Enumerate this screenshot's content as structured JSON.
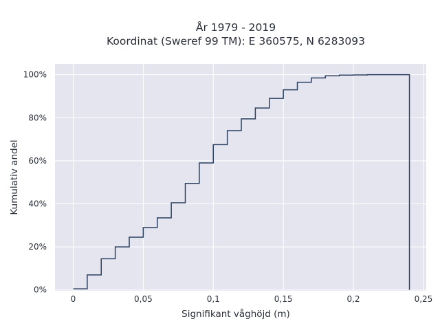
{
  "chart_data": {
    "type": "line",
    "step": "hv",
    "title_lines": [
      "År 1979 - 2019",
      "Koordinat (Sweref 99 TM): E 360575, N 6283093"
    ],
    "xlabel": "Signifikant våghöjd (m)",
    "ylabel": "Kumulativ andel",
    "xlim": [
      -0.013,
      0.252
    ],
    "ylim": [
      -0.004,
      1.05
    ],
    "x_ticks": [
      0,
      0.05,
      0.1,
      0.15,
      0.2,
      0.25
    ],
    "x_tick_labels": [
      "0",
      "0,05",
      "0,1",
      "0,15",
      "0,2",
      "0,25"
    ],
    "y_ticks": [
      0,
      0.2,
      0.4,
      0.6,
      0.8,
      1.0
    ],
    "y_tick_labels": [
      "0%",
      "20%",
      "40%",
      "60%",
      "80%",
      "100%"
    ],
    "grid": true,
    "x": [
      0,
      0.01,
      0.02,
      0.03,
      0.04,
      0.05,
      0.06,
      0.07,
      0.08,
      0.09,
      0.1,
      0.11,
      0.12,
      0.13,
      0.14,
      0.15,
      0.16,
      0.17,
      0.18,
      0.19,
      0.2,
      0.21,
      0.22,
      0.23,
      0.24
    ],
    "y": [
      0.005,
      0.07,
      0.145,
      0.2,
      0.245,
      0.29,
      0.335,
      0.405,
      0.495,
      0.59,
      0.675,
      0.74,
      0.795,
      0.845,
      0.89,
      0.93,
      0.965,
      0.985,
      0.995,
      0.998,
      0.999,
      1.0,
      1.0,
      1.0,
      1.0
    ],
    "drop_at_end": true,
    "colors": {
      "plot_bg": "#e5e5f0",
      "grid": "#ffffff",
      "line": "#2a3f5f",
      "text": "#2a2f3a"
    }
  }
}
